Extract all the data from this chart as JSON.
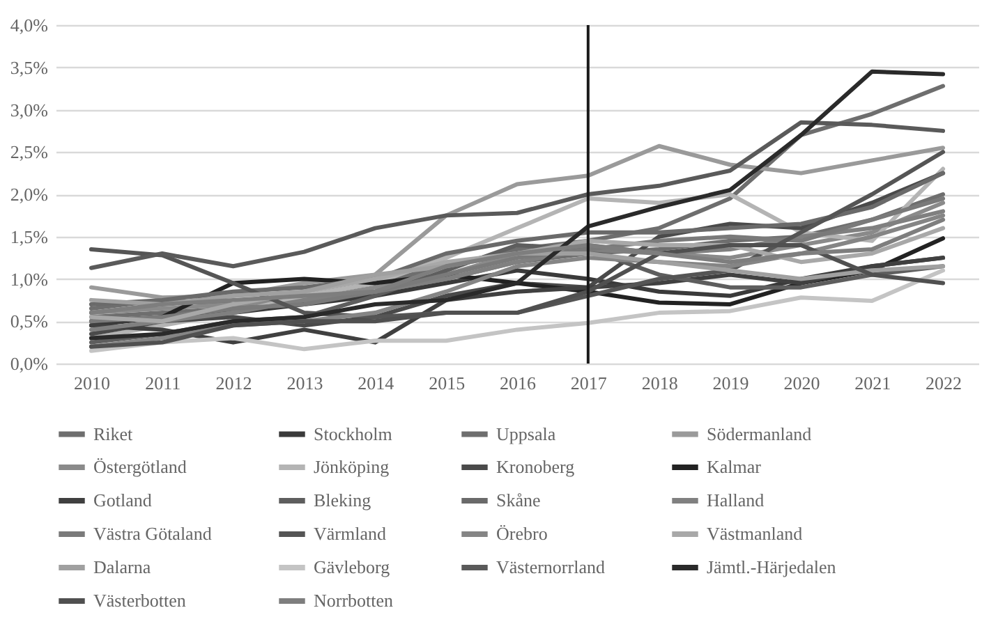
{
  "chart_data": {
    "type": "line",
    "x": [
      2010,
      2011,
      2012,
      2013,
      2014,
      2015,
      2016,
      2017,
      2018,
      2019,
      2020,
      2021,
      2022
    ],
    "xlim": [
      2009.5,
      2022.5
    ],
    "xticks": [
      2010,
      2011,
      2012,
      2013,
      2014,
      2015,
      2016,
      2017,
      2018,
      2019,
      2020,
      2021,
      2022
    ],
    "ylim": [
      0,
      4
    ],
    "yticks": [
      {
        "value": 0,
        "label": "0,0%"
      },
      {
        "value": 0.5,
        "label": "0,5%"
      },
      {
        "value": 1,
        "label": "1,0%"
      },
      {
        "value": 1.5,
        "label": "1,5%"
      },
      {
        "value": 2,
        "label": "2,0%"
      },
      {
        "value": 2.5,
        "label": "2,5%"
      },
      {
        "value": 3,
        "label": "3,0%"
      },
      {
        "value": 3.5,
        "label": "3,5%"
      },
      {
        "value": 4,
        "label": "4,0%"
      }
    ],
    "grid": "y",
    "legend": "bottom",
    "line_style": "solid",
    "marker": "none",
    "ref_lines": [
      {
        "axis": "x",
        "value": 2017,
        "color": "#1a1a1a"
      }
    ],
    "series": [
      {
        "name": "Riket",
        "color": "#6e6e6e",
        "values": [
          0.55,
          0.6,
          0.65,
          0.75,
          0.85,
          1.0,
          1.2,
          1.3,
          1.35,
          1.45,
          1.5,
          1.7,
          2.0
        ]
      },
      {
        "name": "Stockholm",
        "color": "#3a3a3a",
        "values": [
          0.45,
          0.55,
          0.6,
          0.7,
          0.8,
          0.95,
          1.1,
          1.0,
          0.85,
          0.8,
          1.0,
          1.15,
          1.25
        ]
      },
      {
        "name": "Uppsala",
        "color": "#6e6e6e",
        "values": [
          0.65,
          0.75,
          0.7,
          0.8,
          0.95,
          1.15,
          1.35,
          1.45,
          1.6,
          1.95,
          2.7,
          2.95,
          3.28
        ]
      },
      {
        "name": "Södermanland",
        "color": "#9a9a9a",
        "values": [
          0.9,
          0.78,
          0.8,
          0.95,
          1.05,
          1.75,
          2.12,
          2.22,
          2.57,
          2.35,
          2.25,
          2.4,
          2.55
        ]
      },
      {
        "name": "Östergötland",
        "color": "#8a8a8a",
        "values": [
          0.6,
          0.65,
          0.7,
          0.75,
          0.9,
          1.05,
          1.3,
          1.4,
          1.3,
          1.25,
          1.4,
          1.55,
          1.9
        ]
      },
      {
        "name": "Jönköping",
        "color": "#b4b4b4",
        "values": [
          0.3,
          0.45,
          0.6,
          0.8,
          0.95,
          1.25,
          1.6,
          1.95,
          1.9,
          2.0,
          1.55,
          1.45,
          2.3
        ]
      },
      {
        "name": "Kronoberg",
        "color": "#4a4a4a",
        "values": [
          0.35,
          0.5,
          0.55,
          0.45,
          0.55,
          0.8,
          0.95,
          0.9,
          1.5,
          1.65,
          1.6,
          1.9,
          2.25
        ]
      },
      {
        "name": "Kalmar",
        "color": "#222222",
        "values": [
          0.5,
          0.55,
          0.95,
          1.0,
          0.95,
          1.05,
          0.95,
          0.85,
          0.72,
          0.7,
          0.95,
          1.1,
          1.48
        ]
      },
      {
        "name": "Gotland",
        "color": "#404040",
        "values": [
          0.45,
          0.4,
          0.25,
          0.4,
          0.25,
          0.75,
          0.85,
          0.9,
          0.95,
          1.05,
          0.95,
          1.15,
          1.25
        ]
      },
      {
        "name": "Bleking",
        "color": "#5e5e5e",
        "values": [
          0.25,
          0.35,
          0.5,
          0.55,
          0.8,
          1.1,
          1.4,
          1.35,
          1.05,
          0.9,
          0.9,
          1.05,
          1.15
        ]
      },
      {
        "name": "Skåne",
        "color": "#6a6a6a",
        "values": [
          0.7,
          0.75,
          0.85,
          0.9,
          1.0,
          1.3,
          1.45,
          1.55,
          1.55,
          1.6,
          1.65,
          1.85,
          2.25
        ]
      },
      {
        "name": "Halland",
        "color": "#808080",
        "values": [
          0.4,
          0.5,
          0.6,
          0.75,
          0.85,
          1.0,
          1.2,
          1.35,
          1.3,
          1.35,
          1.5,
          1.6,
          1.8
        ]
      },
      {
        "name": "Västra Götaland",
        "color": "#7a7a7a",
        "values": [
          0.5,
          0.55,
          0.65,
          0.7,
          0.85,
          1.05,
          1.25,
          1.35,
          1.45,
          1.5,
          1.45,
          1.7,
          1.95
        ]
      },
      {
        "name": "Värmland",
        "color": "#555555",
        "values": [
          1.35,
          1.28,
          0.95,
          0.6,
          0.55,
          0.6,
          0.6,
          0.8,
          1.0,
          1.1,
          1.55,
          2.0,
          2.5
        ]
      },
      {
        "name": "Örebro",
        "color": "#858585",
        "values": [
          0.2,
          0.3,
          0.45,
          0.5,
          0.6,
          0.85,
          1.15,
          1.25,
          1.2,
          1.15,
          1.3,
          1.5,
          1.75
        ]
      },
      {
        "name": "Västmanland",
        "color": "#a8a8a8",
        "values": [
          0.55,
          0.5,
          0.7,
          0.85,
          1.0,
          1.2,
          1.3,
          1.45,
          1.4,
          1.4,
          1.2,
          1.3,
          1.6
        ]
      },
      {
        "name": "Dalarna",
        "color": "#a0a0a0",
        "values": [
          0.75,
          0.7,
          0.8,
          0.85,
          1.05,
          1.15,
          1.3,
          1.3,
          1.2,
          1.1,
          1.0,
          1.1,
          1.15
        ]
      },
      {
        "name": "Gävleborg",
        "color": "#c4c4c4",
        "values": [
          0.15,
          0.25,
          0.3,
          0.17,
          0.27,
          0.27,
          0.4,
          0.48,
          0.6,
          0.62,
          0.78,
          0.74,
          1.1
        ]
      },
      {
        "name": "Västernorrland",
        "color": "#5a5a5a",
        "values": [
          1.13,
          1.3,
          1.15,
          1.32,
          1.6,
          1.75,
          1.78,
          2.0,
          2.1,
          2.28,
          2.85,
          2.82,
          2.75
        ]
      },
      {
        "name": "Jämtl.-Härjedalen",
        "color": "#2a2a2a",
        "values": [
          0.3,
          0.35,
          0.5,
          0.55,
          0.7,
          0.75,
          0.95,
          1.62,
          1.85,
          2.05,
          2.7,
          3.45,
          3.42
        ]
      },
      {
        "name": "Västerbotten",
        "color": "#505050",
        "values": [
          0.2,
          0.25,
          0.45,
          0.5,
          0.5,
          0.6,
          0.6,
          0.85,
          1.3,
          1.4,
          1.4,
          1.05,
          0.95
        ]
      },
      {
        "name": "Norrbotten",
        "color": "#7e7e7e",
        "values": [
          0.6,
          0.7,
          0.75,
          0.8,
          0.85,
          1.15,
          1.3,
          1.4,
          1.3,
          1.2,
          1.3,
          1.35,
          1.7
        ]
      }
    ]
  }
}
